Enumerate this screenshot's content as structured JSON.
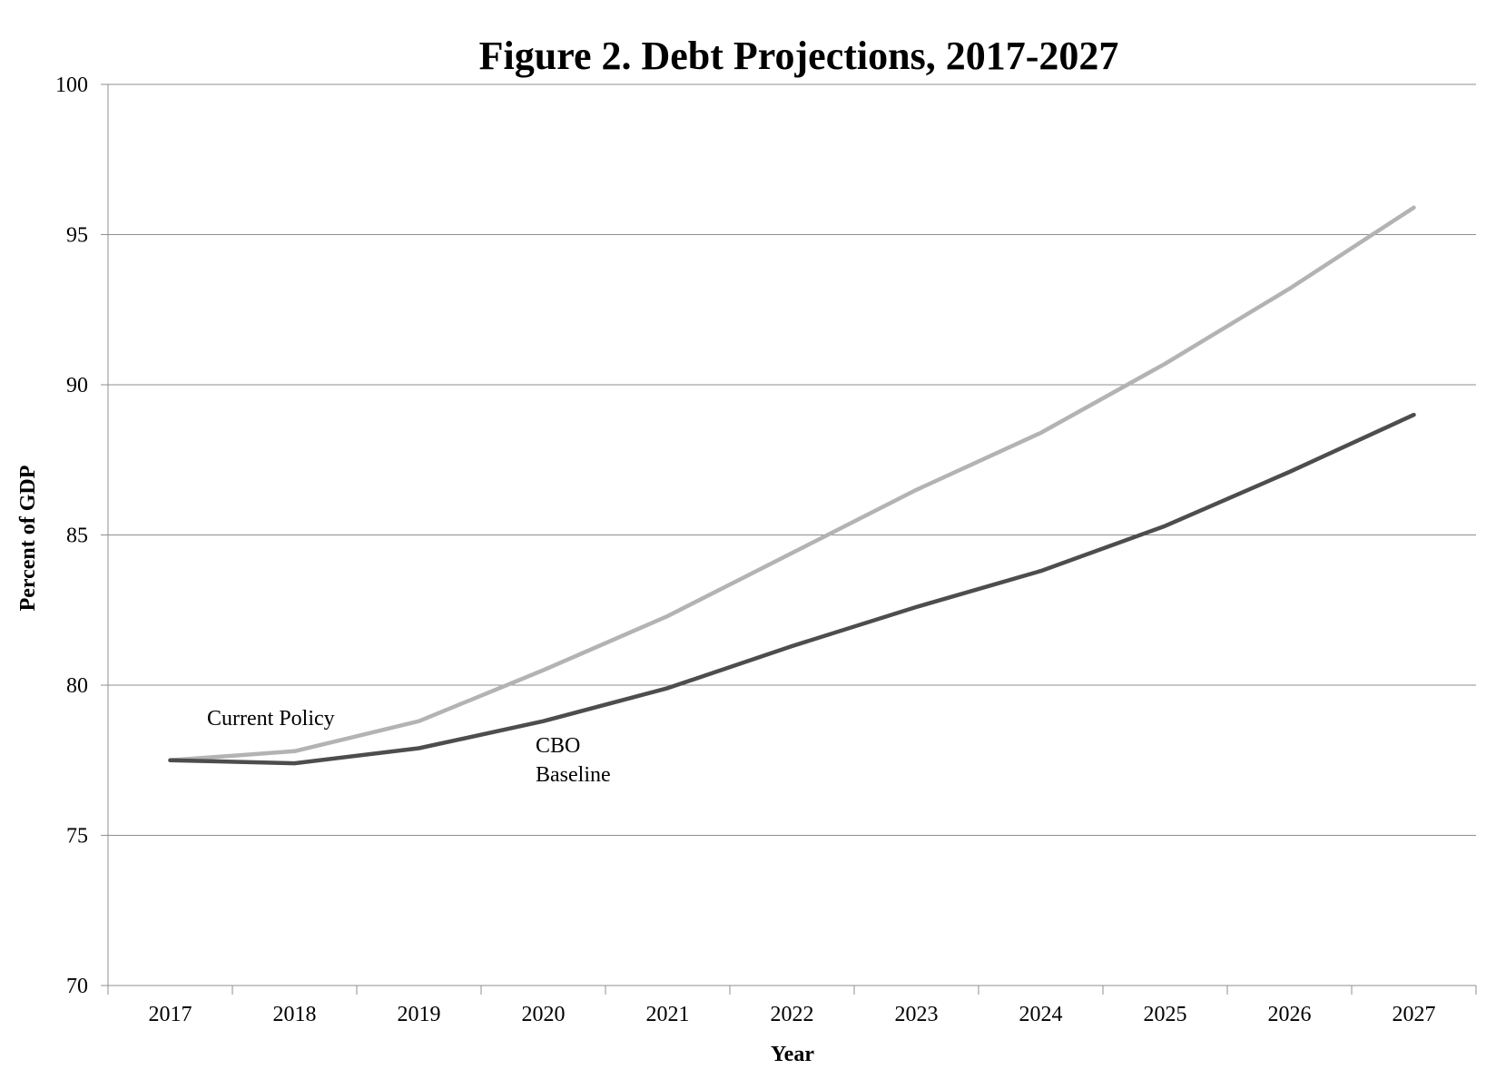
{
  "chart_data": {
    "type": "line",
    "title": "Figure 2. Debt Projections, 2017-2027",
    "xlabel": "Year",
    "ylabel": "Percent of GDP",
    "categories": [
      "2017",
      "2018",
      "2019",
      "2020",
      "2021",
      "2022",
      "2023",
      "2024",
      "2025",
      "2026",
      "2027"
    ],
    "yticks": [
      "70",
      "75",
      "80",
      "85",
      "90",
      "95",
      "100"
    ],
    "ylim": [
      70,
      100
    ],
    "grid": true,
    "series": [
      {
        "name": "Current Policy",
        "color": "#b3b3b3",
        "values": [
          77.5,
          77.8,
          78.8,
          80.5,
          82.3,
          84.4,
          86.5,
          88.4,
          90.7,
          93.2,
          95.9
        ]
      },
      {
        "name": "CBO Baseline",
        "color": "#4d4d4d",
        "values": [
          77.5,
          77.4,
          77.9,
          78.8,
          79.9,
          81.3,
          82.6,
          83.8,
          85.3,
          87.1,
          89.0
        ]
      }
    ],
    "annotations": {
      "current_policy": "Current Policy",
      "cbo_line1": "CBO",
      "cbo_line2": "Baseline"
    }
  }
}
